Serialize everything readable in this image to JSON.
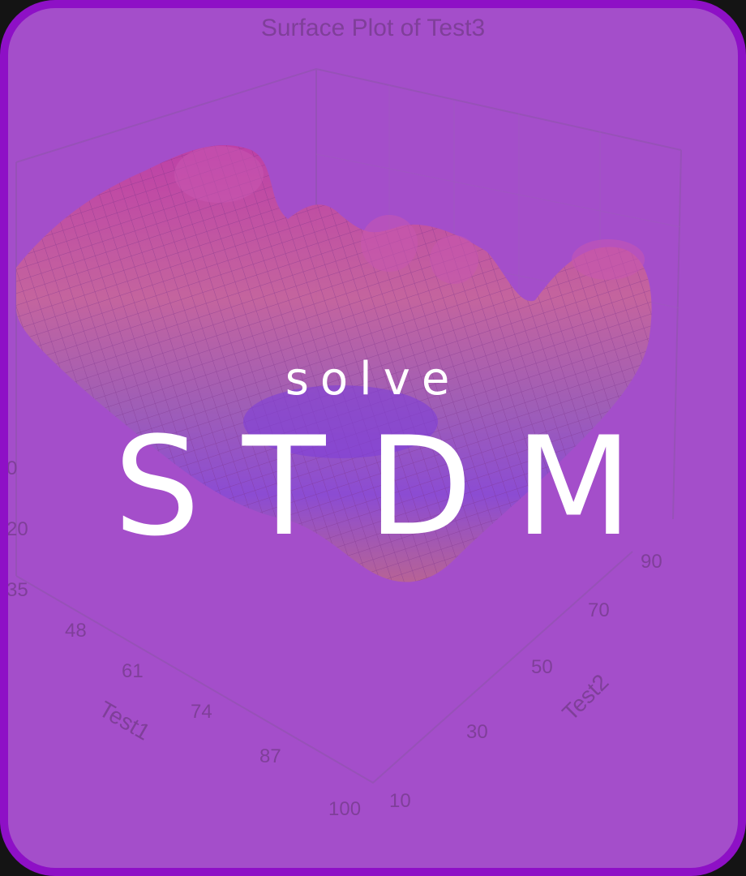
{
  "card": {
    "border_color": "#8e10c6",
    "tint_color": "#a653c8"
  },
  "plot": {
    "title": "Surface Plot of Test3",
    "x_axis_label": "Test1",
    "y_axis_label": "Test2",
    "x_ticks": [
      "48",
      "61",
      "74",
      "87",
      "100"
    ],
    "y_ticks": [
      "10",
      "30",
      "50",
      "70",
      "90"
    ],
    "z_ticks": [
      "0",
      "20"
    ],
    "corner_tick": "35"
  },
  "headline": {
    "small": "solve",
    "large": "STDM"
  }
}
